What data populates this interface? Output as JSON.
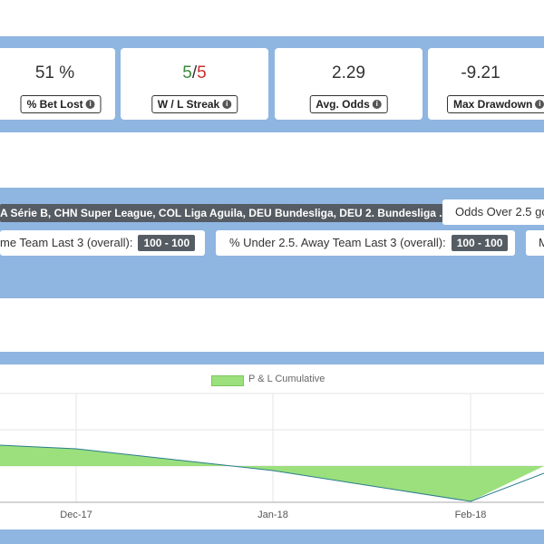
{
  "stats": [
    {
      "value": "51 %",
      "label": "% Bet Lost"
    },
    {
      "value_a": "5",
      "value_sep": "/",
      "value_b": "5",
      "label": "W / L Streak"
    },
    {
      "value": "2.29",
      "label": "Avg. Odds"
    },
    {
      "value": "-9.21",
      "label": "Max Drawdown"
    }
  ],
  "filters": {
    "leagues": "A Série B, CHN Super League, COL Liga Aguila, DEU Bundesliga, DEU 2. Bundesliga ...",
    "odds_over": "Odds Over 2.5 go",
    "home_last3_label": "me Team Last 3 (overall):",
    "home_last3_range": "100 - 100",
    "away_last3_label": "% Under 2.5. Away Team Last 3 (overall):",
    "away_last3_range": "100 - 100",
    "more_label": "M"
  },
  "colors": {
    "band": "#8fb5e1",
    "positive": "#3c8a3a",
    "negative": "#c9302c",
    "area_fill": "#9be07d",
    "line": "#2a7d8c"
  },
  "chart_data": {
    "type": "area",
    "legend": "P & L Cumulative",
    "x_ticks": [
      "Dec-17",
      "Jan-18",
      "Feb-18"
    ]
  }
}
